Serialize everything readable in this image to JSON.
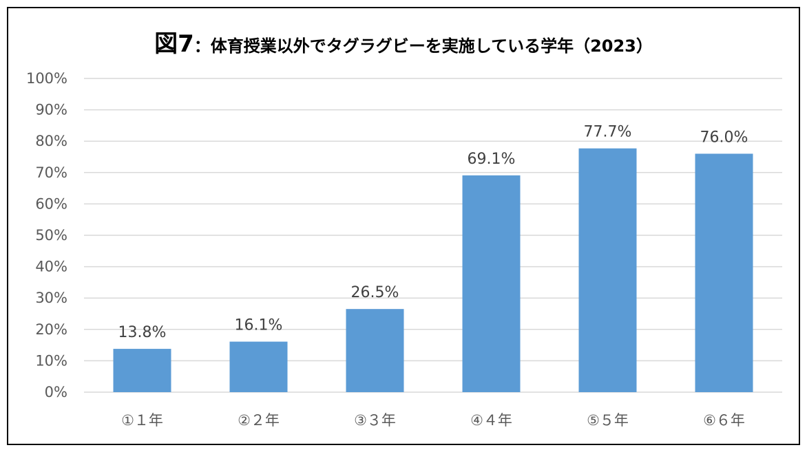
{
  "chart_data": {
    "type": "bar",
    "title_prefix": "図7",
    "title_rest": "：体育授業以外でタグラグビーを実施している学年（2023）",
    "categories": [
      "①１年",
      "②２年",
      "③３年",
      "④４年",
      "⑤５年",
      "⑥６年"
    ],
    "values": [
      13.8,
      16.1,
      26.5,
      69.1,
      77.7,
      76.0
    ],
    "data_labels": [
      "13.8%",
      "16.1%",
      "26.5%",
      "69.1%",
      "77.7%",
      "76.0%"
    ],
    "ylim": [
      0,
      100
    ],
    "yticks": [
      0,
      10,
      20,
      30,
      40,
      50,
      60,
      70,
      80,
      90,
      100
    ],
    "ytick_labels": [
      "0%",
      "10%",
      "20%",
      "30%",
      "40%",
      "50%",
      "60%",
      "70%",
      "80%",
      "90%",
      "100%"
    ],
    "xlabel": "",
    "ylabel": "",
    "grid": true,
    "legend": "none",
    "colors": {
      "bar": "#5b9bd5",
      "grid": "#d9d9d9",
      "axis_text": "#595959",
      "label_text": "#404040",
      "border": "#000000"
    }
  }
}
